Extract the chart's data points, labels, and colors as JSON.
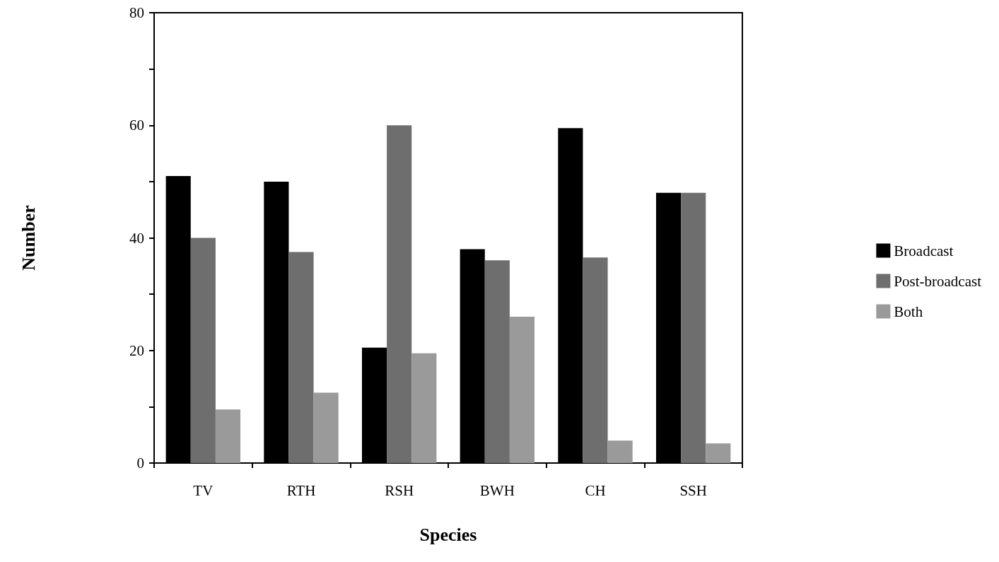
{
  "chart_data": {
    "type": "bar",
    "xlabel": "Species",
    "ylabel": "Number",
    "categories": [
      "TV",
      "RTH",
      "RSH",
      "BWH",
      "CH",
      "SSH"
    ],
    "series": [
      {
        "name": "Broadcast",
        "color": "#000000",
        "values": [
          51,
          50,
          20.5,
          38,
          59.5,
          48
        ]
      },
      {
        "name": "Post-broadcast",
        "color": "#6e6e6e",
        "values": [
          40,
          37.5,
          60,
          36,
          36.5,
          48
        ]
      },
      {
        "name": "Both",
        "color": "#9a9a9a",
        "values": [
          9.5,
          12.5,
          19.5,
          26,
          4,
          3.5
        ]
      }
    ],
    "ylim": [
      0,
      80
    ],
    "yticks": [
      0,
      {
        "value": 10,
        "label": null
      },
      20,
      {
        "value": 30,
        "label": null
      },
      40,
      {
        "value": 50,
        "label": null
      },
      60,
      {
        "value": 70,
        "label": null
      },
      80
    ],
    "grid": false,
    "legend": "right"
  }
}
